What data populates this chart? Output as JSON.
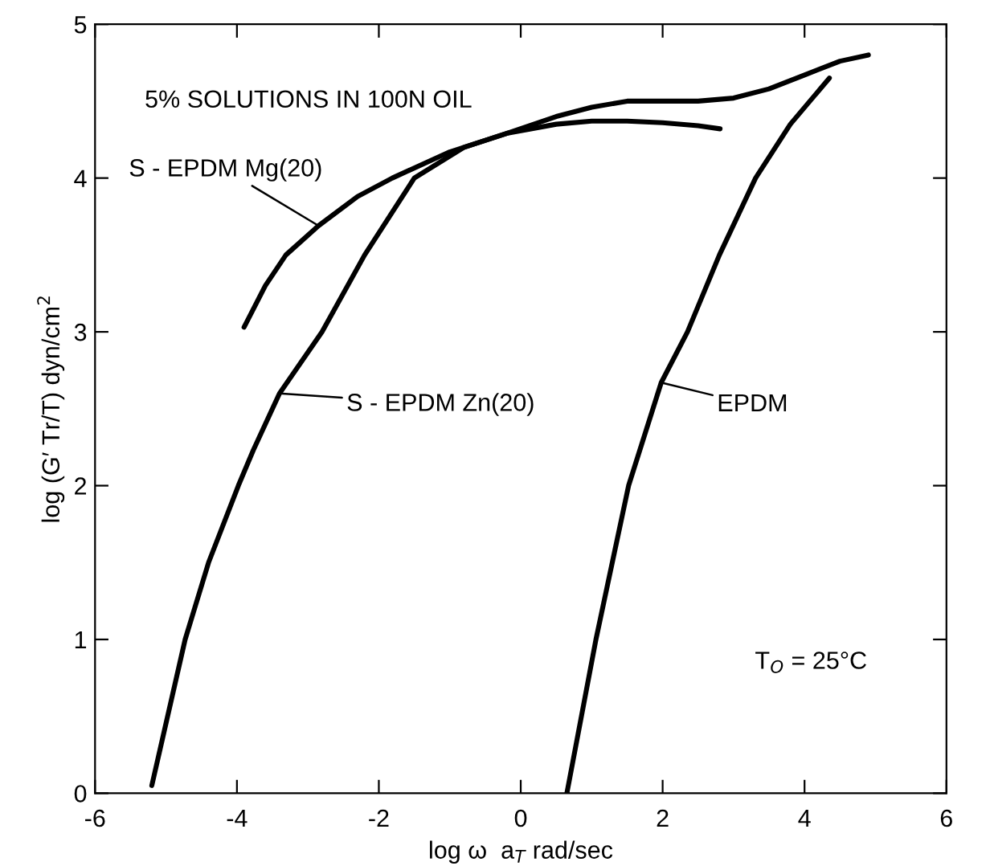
{
  "chart_data": {
    "type": "line",
    "xlabel": "log ω  a$_{T}$ rad/sec",
    "ylabel": "log (G′ Tr/T) dyn/cm$^{2}$",
    "xlim": [
      -6,
      6
    ],
    "ylim": [
      0,
      5
    ],
    "xticks": [
      -6,
      -4,
      -2,
      0,
      2,
      4,
      6
    ],
    "yticks": [
      0,
      1,
      2,
      3,
      4,
      5
    ],
    "grid": false,
    "legend": false,
    "marker": "none",
    "line_style": "solid",
    "series": [
      {
        "color": "#000000",
        "x": [
          -3.9,
          -3.6,
          -3.31,
          -2.85,
          -2.3,
          -1.81,
          -1,
          -0.2,
          0.5,
          1,
          1.5,
          2,
          2.5,
          2.81
        ],
        "values": [
          3.03,
          3.3,
          3.5,
          3.69,
          3.88,
          4.0,
          4.17,
          4.29,
          4.35,
          4.37,
          4.37,
          4.36,
          4.34,
          4.32
        ]
      },
      {
        "color": "#000000",
        "x": [
          -5.2,
          -4.73,
          -4.4,
          -3.98,
          -3.77,
          -3.4,
          -2.8,
          -2.2,
          -1.5,
          -0.8,
          -0.2,
          0.5,
          1,
          1.5,
          2,
          2.5,
          3,
          3.5,
          4,
          4.5,
          4.9
        ],
        "values": [
          0.05,
          1,
          1.5,
          2,
          2.23,
          2.6,
          3.0,
          3.5,
          4.0,
          4.2,
          4.29,
          4.4,
          4.46,
          4.5,
          4.5,
          4.5,
          4.52,
          4.58,
          4.67,
          4.76,
          4.8
        ]
      },
      {
        "color": "#000000",
        "x": [
          0.65,
          1.06,
          1.52,
          1.98,
          2.35,
          2.8,
          3.31,
          3.8,
          4.35
        ],
        "values": [
          0,
          1,
          2,
          2.67,
          3,
          3.5,
          4,
          4.35,
          4.65
        ]
      }
    ],
    "annotations": [
      "5% SOLUTIONS IN 100N OIL",
      {
        "text": "S - EPDM Mg(20)",
        "x": -2.85,
        "y": 3.69
      },
      {
        "text": "S - EPDM Zn(20)",
        "x": -3.4,
        "y": 2.6
      },
      {
        "text": "EPDM",
        "x": 1.98,
        "y": 2.67
      },
      "T$_{O}$ = 25°C"
    ]
  }
}
